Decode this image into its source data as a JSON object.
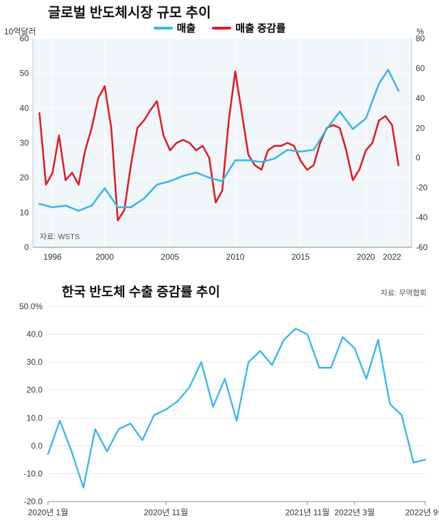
{
  "chart1": {
    "type": "line",
    "title": "글로벌 반도체시장 규모 추이",
    "title_fontsize": 20,
    "legend": {
      "items": [
        {
          "label": "매출",
          "color": "#39b7e9"
        },
        {
          "label": "매출 증감률",
          "color": "#e11b22"
        }
      ]
    },
    "y_left": {
      "label": "10억달러",
      "min": 0,
      "max": 60,
      "ticks": [
        0,
        10,
        20,
        30,
        40,
        50,
        60
      ],
      "color": "#333333"
    },
    "y_right": {
      "label": "%",
      "min": -60,
      "max": 80,
      "ticks": [
        -60,
        -40,
        -20,
        0,
        20,
        40,
        60,
        80
      ],
      "color": "#333333"
    },
    "x_ticks": [
      1996,
      2000,
      2005,
      2010,
      2015,
      2020,
      2022
    ],
    "x_min": 1994.5,
    "x_max": 2023.5,
    "background_color": "#f1f6fa",
    "grid_color": "#ffffff",
    "line_width": 2.6,
    "source_label": "자료: WSTS",
    "series_revenue": {
      "color": "#39b7e9",
      "data": [
        [
          1995,
          12.5
        ],
        [
          1996,
          11.5
        ],
        [
          1997,
          12.0
        ],
        [
          1998,
          10.5
        ],
        [
          1999,
          12.0
        ],
        [
          2000,
          17.0
        ],
        [
          2001,
          11.5
        ],
        [
          2002,
          11.5
        ],
        [
          2003,
          14.0
        ],
        [
          2004,
          18.0
        ],
        [
          2005,
          19.0
        ],
        [
          2006,
          20.5
        ],
        [
          2007,
          21.5
        ],
        [
          2008,
          20.0
        ],
        [
          2009,
          19.0
        ],
        [
          2010,
          25.0
        ],
        [
          2011,
          25.0
        ],
        [
          2012,
          24.5
        ],
        [
          2013,
          25.5
        ],
        [
          2014,
          28.0
        ],
        [
          2015,
          27.5
        ],
        [
          2016,
          28.0
        ],
        [
          2017,
          34.0
        ],
        [
          2018,
          39.0
        ],
        [
          2019,
          34.0
        ],
        [
          2020,
          37.0
        ],
        [
          2021,
          47.0
        ],
        [
          2021.7,
          51.0
        ],
        [
          2022.5,
          45.0
        ]
      ]
    },
    "series_growth": {
      "color": "#e11b22",
      "data": [
        [
          1995,
          30
        ],
        [
          1995.5,
          -18
        ],
        [
          1996,
          -10
        ],
        [
          1996.5,
          15
        ],
        [
          1997,
          -15
        ],
        [
          1997.5,
          -10
        ],
        [
          1998,
          -18
        ],
        [
          1998.5,
          5
        ],
        [
          1999,
          20
        ],
        [
          1999.5,
          40
        ],
        [
          2000,
          48
        ],
        [
          2000.5,
          20
        ],
        [
          2001,
          -42
        ],
        [
          2001.5,
          -35
        ],
        [
          2002,
          -5
        ],
        [
          2002.5,
          20
        ],
        [
          2003,
          25
        ],
        [
          2003.5,
          32
        ],
        [
          2004,
          38
        ],
        [
          2004.5,
          15
        ],
        [
          2005,
          5
        ],
        [
          2005.5,
          10
        ],
        [
          2006,
          12
        ],
        [
          2006.5,
          10
        ],
        [
          2007,
          5
        ],
        [
          2007.5,
          8
        ],
        [
          2008,
          0
        ],
        [
          2008.5,
          -30
        ],
        [
          2009,
          -22
        ],
        [
          2009.5,
          25
        ],
        [
          2010,
          58
        ],
        [
          2010.5,
          30
        ],
        [
          2011,
          2
        ],
        [
          2011.5,
          -5
        ],
        [
          2012,
          -8
        ],
        [
          2012.5,
          5
        ],
        [
          2013,
          8
        ],
        [
          2013.5,
          8
        ],
        [
          2014,
          10
        ],
        [
          2014.5,
          8
        ],
        [
          2015,
          -2
        ],
        [
          2015.5,
          -8
        ],
        [
          2016,
          -5
        ],
        [
          2016.5,
          10
        ],
        [
          2017,
          20
        ],
        [
          2017.5,
          22
        ],
        [
          2018,
          20
        ],
        [
          2018.5,
          5
        ],
        [
          2019,
          -15
        ],
        [
          2019.5,
          -8
        ],
        [
          2020,
          5
        ],
        [
          2020.5,
          10
        ],
        [
          2021,
          25
        ],
        [
          2021.5,
          28
        ],
        [
          2022,
          22
        ],
        [
          2022.5,
          -5
        ]
      ]
    }
  },
  "chart2": {
    "type": "line",
    "title": "한국 반도체 수출 증감률 추이",
    "title_fontsize": 19,
    "source_label": "자료: 무역협회",
    "y": {
      "min": -20,
      "max": 50,
      "ticks": [
        -20,
        -10,
        0,
        10,
        20,
        30,
        40,
        50
      ],
      "suffix": "%"
    },
    "x_ticks": [
      "2020년 1월",
      "2020년 11월",
      "2021년 11월",
      "2022년 3월",
      "2022년 9월"
    ],
    "x_tick_positions": [
      0,
      10,
      22,
      26,
      32
    ],
    "x_min": 0,
    "x_max": 32,
    "background_color": "#ffffff",
    "grid_color": "#e6e6e6",
    "line_width": 2.4,
    "series": {
      "color": "#39b7e9",
      "data": [
        [
          0,
          -3
        ],
        [
          1,
          9
        ],
        [
          2,
          -2
        ],
        [
          3,
          -15
        ],
        [
          4,
          6
        ],
        [
          5,
          -2
        ],
        [
          6,
          6
        ],
        [
          7,
          8
        ],
        [
          8,
          2
        ],
        [
          9,
          11
        ],
        [
          10,
          13
        ],
        [
          11,
          16
        ],
        [
          12,
          21
        ],
        [
          13,
          30
        ],
        [
          14,
          14
        ],
        [
          15,
          24
        ],
        [
          16,
          9
        ],
        [
          17,
          30
        ],
        [
          18,
          34
        ],
        [
          19,
          29
        ],
        [
          20,
          38
        ],
        [
          21,
          42
        ],
        [
          22,
          40
        ],
        [
          23,
          28
        ],
        [
          24,
          28
        ],
        [
          25,
          39
        ],
        [
          26,
          35
        ],
        [
          27,
          24
        ],
        [
          28,
          38
        ],
        [
          29,
          15
        ],
        [
          30,
          11
        ],
        [
          31,
          -6
        ],
        [
          32,
          -5
        ]
      ]
    }
  }
}
